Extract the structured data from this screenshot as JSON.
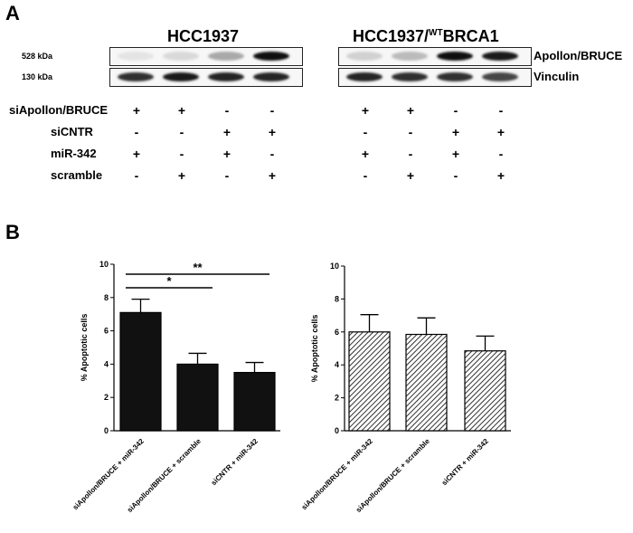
{
  "figure": {
    "panel_a_label": "A",
    "panel_b_label": "B"
  },
  "blot": {
    "left_title": "HCC1937",
    "right_title_prefix": "HCC1937/",
    "right_title_sup": "WT",
    "right_title_suffix": "BRCA1",
    "kda_top": "528 kDa",
    "kda_bottom": "130 kDa",
    "protein_top": "Apollon/BRUCE",
    "protein_bottom": "Vinculin",
    "apollon_intensity_left": [
      0.03,
      0.08,
      0.3,
      1.0
    ],
    "apollon_intensity_right": [
      0.12,
      0.22,
      1.0,
      0.95
    ],
    "vinculin_intensity_left": [
      0.85,
      0.95,
      0.9,
      0.9
    ],
    "vinculin_intensity_right": [
      0.9,
      0.85,
      0.85,
      0.75
    ]
  },
  "conditions": [
    {
      "label": "siApollon/BRUCE",
      "values": [
        "+",
        "+",
        "-",
        "-"
      ]
    },
    {
      "label": "siCNTR",
      "values": [
        "-",
        "-",
        "+",
        "+"
      ]
    },
    {
      "label": "miR-342",
      "values": [
        "+",
        "-",
        "+",
        "-"
      ]
    },
    {
      "label": "scramble",
      "values": [
        "-",
        "+",
        "-",
        "+"
      ]
    }
  ],
  "chart_data": [
    {
      "type": "bar",
      "categories": [
        "siApollon/BRUCE + miR-342",
        "siApollon/BRUCE + scramble",
        "siCNTR + miR-342"
      ],
      "values": [
        7.1,
        4.0,
        3.5
      ],
      "errors": [
        0.8,
        0.65,
        0.6
      ],
      "ylabel": "% Apoptotic cells",
      "ylim": [
        0,
        10
      ],
      "yticks": [
        "0",
        "2",
        "4",
        "6",
        "8",
        "10"
      ],
      "fill": "#111111",
      "significance": [
        {
          "from": 0,
          "to": 1,
          "label": "*"
        },
        {
          "from": 0,
          "to": 2,
          "label": "**"
        }
      ]
    },
    {
      "type": "bar",
      "categories": [
        "siApollon/BRUCE + miR-342",
        "siApollon/BRUCE + scramble",
        "siCNTR + miR-342"
      ],
      "values": [
        6.0,
        5.85,
        4.85
      ],
      "errors": [
        1.05,
        1.0,
        0.9
      ],
      "ylabel": "% Apoptotic cells",
      "ylim": [
        0,
        10
      ],
      "yticks": [
        "0",
        "2",
        "4",
        "6",
        "8",
        "10"
      ],
      "fill": "hatched"
    }
  ]
}
